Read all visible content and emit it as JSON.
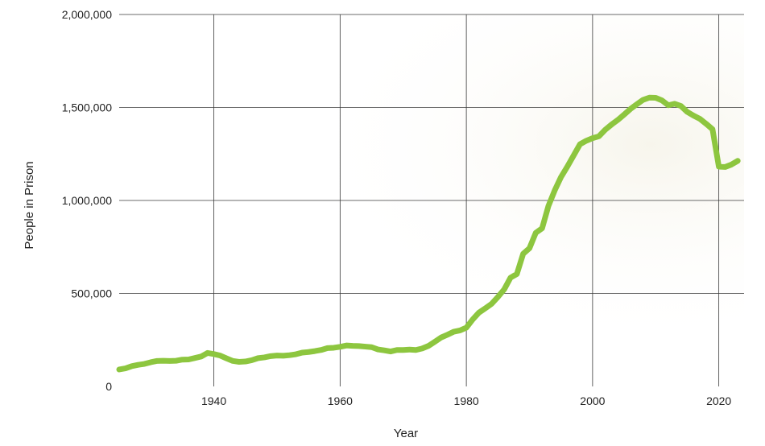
{
  "chart_data": {
    "type": "line",
    "title": "",
    "xlabel": "Year",
    "ylabel": "People in Prison",
    "xlim": [
      1925,
      2024
    ],
    "ylim": [
      0,
      2000000
    ],
    "grid": true,
    "legend": "none",
    "x_ticks": [
      1940,
      1960,
      1980,
      2000,
      2020
    ],
    "x_tick_labels": [
      "1940",
      "1960",
      "1980",
      "2000",
      "2020"
    ],
    "y_ticks": [
      0,
      500000,
      1000000,
      1500000,
      2000000
    ],
    "y_tick_labels": [
      "0",
      "500,000",
      "1,000,000",
      "1,500,000",
      "2,000,000"
    ],
    "colors": {
      "line": "#8dc63f",
      "grid": "#3a3a3a",
      "text": "#222222"
    },
    "series": [
      {
        "x": [
          1925,
          1926,
          1927,
          1928,
          1929,
          1930,
          1931,
          1932,
          1933,
          1934,
          1935,
          1936,
          1937,
          1938,
          1939,
          1940,
          1941,
          1942,
          1943,
          1944,
          1945,
          1946,
          1947,
          1948,
          1949,
          1950,
          1951,
          1952,
          1953,
          1954,
          1955,
          1956,
          1957,
          1958,
          1959,
          1960,
          1961,
          1962,
          1963,
          1964,
          1965,
          1966,
          1967,
          1968,
          1969,
          1970,
          1971,
          1972,
          1973,
          1974,
          1975,
          1976,
          1977,
          1978,
          1979,
          1980,
          1981,
          1982,
          1983,
          1984,
          1985,
          1986,
          1987,
          1988,
          1989,
          1990,
          1991,
          1992,
          1993,
          1994,
          1995,
          1996,
          1997,
          1998,
          1999,
          2000,
          2001,
          2002,
          2003,
          2004,
          2005,
          2006,
          2007,
          2008,
          2009,
          2010,
          2011,
          2012,
          2013,
          2014,
          2015,
          2016,
          2017,
          2018,
          2019,
          2020,
          2021,
          2022,
          2023
        ],
        "y": [
          91000,
          97000,
          109000,
          116000,
          121000,
          130000,
          137000,
          138000,
          137000,
          138000,
          144000,
          145000,
          153000,
          161000,
          180000,
          174000,
          166000,
          151000,
          137000,
          132000,
          134000,
          141000,
          152000,
          156000,
          163000,
          166000,
          165000,
          168000,
          173000,
          182000,
          185000,
          190000,
          196000,
          206000,
          208000,
          213000,
          220000,
          218000,
          217000,
          214000,
          211000,
          199000,
          194000,
          188000,
          196000,
          196000,
          198000,
          196000,
          204000,
          218000,
          240000,
          263000,
          278000,
          294000,
          301000,
          316000,
          360000,
          397000,
          420000,
          444000,
          481000,
          522000,
          585000,
          604000,
          713000,
          743000,
          826000,
          850000,
          970000,
          1054000,
          1126000,
          1182000,
          1242000,
          1302000,
          1321000,
          1335000,
          1345000,
          1380000,
          1408000,
          1433000,
          1462000,
          1492000,
          1517000,
          1541000,
          1553000,
          1552000,
          1538000,
          1512000,
          1520000,
          1508000,
          1476000,
          1456000,
          1439000,
          1412000,
          1383000,
          1182000,
          1180000,
          1193000,
          1213000
        ]
      }
    ]
  }
}
